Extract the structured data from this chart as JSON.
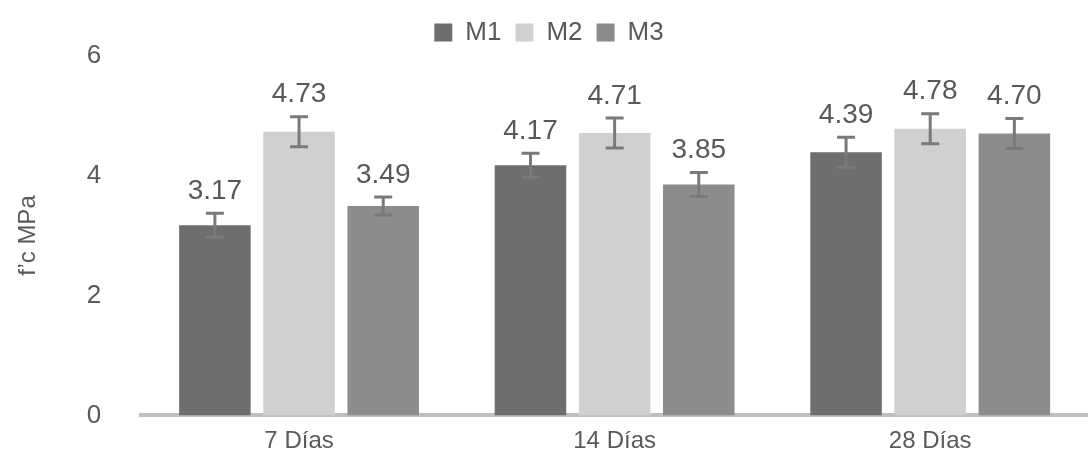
{
  "chart_data": {
    "type": "bar",
    "ylabel": "f’c MPa",
    "categories": [
      "7 Días",
      "14 Días",
      "28 Días"
    ],
    "series": [
      {
        "name": "M1",
        "color": "#6e6e6e",
        "values": [
          3.17,
          4.17,
          4.39
        ],
        "value_labels": [
          "3.17",
          "4.17",
          "4.39"
        ],
        "errors": [
          0.2,
          0.2,
          0.25
        ]
      },
      {
        "name": "M2",
        "color": "#d0d0d0",
        "values": [
          4.73,
          4.71,
          4.78
        ],
        "value_labels": [
          "4.73",
          "4.71",
          "4.78"
        ],
        "errors": [
          0.25,
          0.25,
          0.25
        ]
      },
      {
        "name": "M3",
        "color": "#8c8c8c",
        "values": [
          3.49,
          3.85,
          4.7
        ],
        "value_labels": [
          "3.49",
          "3.85",
          "4.70"
        ],
        "errors": [
          0.15,
          0.2,
          0.25
        ]
      }
    ],
    "ylim": [
      0,
      6
    ],
    "yticks": [
      0,
      2,
      4,
      6
    ],
    "grid": false,
    "legend": "top"
  }
}
